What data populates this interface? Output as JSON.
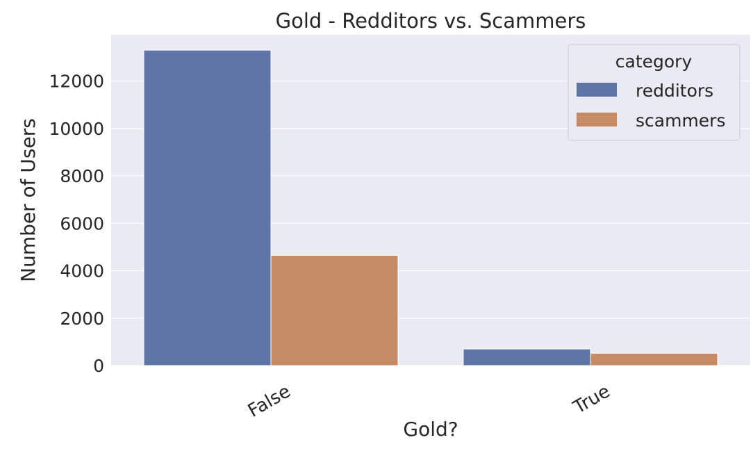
{
  "chart_data": {
    "type": "bar",
    "title": "Gold - Redditors vs. Scammers",
    "xlabel": "Gold?",
    "ylabel": "Number of Users",
    "categories": [
      "False",
      "True"
    ],
    "series": [
      {
        "name": "redditors",
        "values": [
          13300,
          700
        ],
        "color": "#5d74a5"
      },
      {
        "name": "scammers",
        "values": [
          4650,
          520
        ],
        "color": "#c58b67"
      }
    ],
    "ylim": [
      0,
      13950
    ],
    "yticks": [
      0,
      2000,
      4000,
      6000,
      8000,
      10000,
      12000
    ],
    "grid": true,
    "legend": {
      "title": "category",
      "position": "top-right"
    },
    "colors": {
      "background": "#eaeaf2",
      "grid": "#ffffff",
      "text": "#262626"
    }
  }
}
